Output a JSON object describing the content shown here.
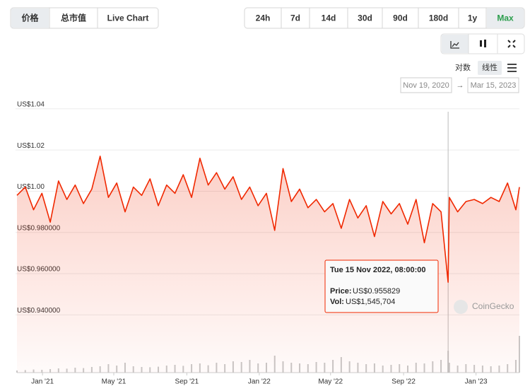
{
  "tabs": {
    "items": [
      "价格",
      "总市值",
      "Live Chart"
    ],
    "selected": 0
  },
  "ranges": {
    "items": [
      "24h",
      "7d",
      "14d",
      "30d",
      "90d",
      "180d",
      "1y",
      "Max"
    ],
    "selected": 7
  },
  "scale_modes": {
    "items": [
      "对数",
      "线性"
    ],
    "selected": 1
  },
  "date_range": {
    "from": "Nov 19, 2020",
    "arrow": "→",
    "to": "Mar 15, 2023"
  },
  "watermark": "CoinGecko",
  "tooltip": {
    "title": "Tue 15 Nov 2022, 08:00:00",
    "price_label": "Price:",
    "price": "US$0.955829",
    "vol_label": "Vol:",
    "vol": "US$1,545,704"
  },
  "chart_data": {
    "type": "line",
    "color": "#f02800",
    "grid": true,
    "x": [
      "2020-11-19",
      "2020-12-03",
      "2020-12-17",
      "2020-12-31",
      "2021-01-14",
      "2021-01-28",
      "2021-02-11",
      "2021-02-25",
      "2021-03-11",
      "2021-03-25",
      "2021-04-08",
      "2021-04-22",
      "2021-05-06",
      "2021-05-20",
      "2021-06-03",
      "2021-06-17",
      "2021-07-01",
      "2021-07-15",
      "2021-07-29",
      "2021-08-12",
      "2021-08-26",
      "2021-09-09",
      "2021-09-23",
      "2021-10-07",
      "2021-10-21",
      "2021-11-04",
      "2021-11-18",
      "2021-12-02",
      "2021-12-16",
      "2021-12-30",
      "2022-01-13",
      "2022-01-27",
      "2022-02-10",
      "2022-02-24",
      "2022-03-10",
      "2022-03-24",
      "2022-04-07",
      "2022-04-21",
      "2022-05-05",
      "2022-05-19",
      "2022-06-02",
      "2022-06-16",
      "2022-06-30",
      "2022-07-14",
      "2022-07-28",
      "2022-08-11",
      "2022-08-25",
      "2022-09-08",
      "2022-09-22",
      "2022-10-06",
      "2022-10-20",
      "2022-11-03",
      "2022-11-15",
      "2022-11-17",
      "2022-12-01",
      "2022-12-15",
      "2022-12-29",
      "2023-01-12",
      "2023-01-26",
      "2023-02-09",
      "2023-02-23",
      "2023-03-09",
      "2023-03-15"
    ],
    "values": [
      0.998,
      1.002,
      0.991,
      0.999,
      0.985,
      1.005,
      0.996,
      1.003,
      0.994,
      1.001,
      1.017,
      0.997,
      1.004,
      0.99,
      1.002,
      0.998,
      1.006,
      0.993,
      1.003,
      0.999,
      1.008,
      0.997,
      1.016,
      1.003,
      1.009,
      1.001,
      1.007,
      0.996,
      1.002,
      0.993,
      0.999,
      0.981,
      1.011,
      0.995,
      1.001,
      0.992,
      0.996,
      0.99,
      0.994,
      0.982,
      0.996,
      0.987,
      0.993,
      0.978,
      0.995,
      0.989,
      0.994,
      0.984,
      0.996,
      0.975,
      0.994,
      0.99,
      0.955829,
      0.997,
      0.99,
      0.995,
      0.996,
      0.994,
      0.997,
      0.995,
      1.004,
      0.991,
      1.002
    ],
    "volume": {
      "axis": "y2",
      "color": "#c8c8c8",
      "values": [
        150000,
        180000,
        220000,
        200000,
        250000,
        300000,
        280000,
        350000,
        320000,
        400000,
        450000,
        600000,
        500000,
        700000,
        450000,
        400000,
        380000,
        420000,
        500000,
        550000,
        480000,
        600000,
        650000,
        520000,
        700000,
        600000,
        800000,
        750000,
        900000,
        650000,
        700000,
        1200000,
        800000,
        700000,
        650000,
        600000,
        750000,
        700000,
        900000,
        1100000,
        800000,
        700000,
        600000,
        650000,
        500000,
        550000,
        600000,
        500000,
        700000,
        650000,
        800000,
        900000,
        1545704,
        700000,
        500000,
        600000,
        550000,
        500000,
        450000,
        500000,
        600000,
        900000,
        2600000
      ]
    },
    "xlim": [
      "2020-11-19",
      "2023-03-15"
    ],
    "xticks": [
      {
        "value": "2021-01-01",
        "label": "Jan '21"
      },
      {
        "value": "2021-05-01",
        "label": "May '21"
      },
      {
        "value": "2021-09-01",
        "label": "Sep '21"
      },
      {
        "value": "2022-01-01",
        "label": "Jan '22"
      },
      {
        "value": "2022-05-01",
        "label": "May '22"
      },
      {
        "value": "2022-09-01",
        "label": "Sep '22"
      },
      {
        "value": "2023-01-01",
        "label": "Jan '23"
      }
    ],
    "ylim": [
      0.912,
      1.042
    ],
    "yticks": [
      {
        "value": 0.94,
        "label": "US$0.940000"
      },
      {
        "value": 0.96,
        "label": "US$0.960000"
      },
      {
        "value": 0.98,
        "label": "US$0.980000"
      },
      {
        "value": 1.0,
        "label": "US$1.00"
      },
      {
        "value": 1.02,
        "label": "US$1.02"
      },
      {
        "value": 1.04,
        "label": "US$1.04"
      }
    ],
    "y2lim": [
      0,
      3000000
    ],
    "highlight": 52
  }
}
